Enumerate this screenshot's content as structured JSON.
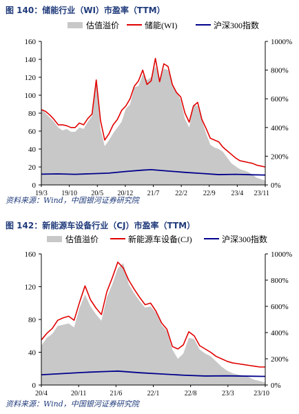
{
  "colors": {
    "title": "#1f3a7a",
    "premium_fill": "#c8c8c8",
    "sector_line": "#e00000",
    "index_line": "#00008b"
  },
  "panels": [
    {
      "title": "图 140：储能行业（WI）市盈率（TTM）",
      "source": "资料来源：Wind，中国银河证券研究院"
    },
    {
      "title": "图 142：新能源车设备行业（CJ）市盈率（TTM）",
      "source": "资料来源：Wind，中国银河证券研究院"
    }
  ],
  "chart_data": [
    {
      "type": "line",
      "x_ticks": [
        "19/3",
        "19/10",
        "20/5",
        "20/12",
        "21/7",
        "22/2",
        "22/9",
        "23/4",
        "23/11"
      ],
      "y_left_ticks": [
        "0",
        "20",
        "40",
        "60",
        "80",
        "100",
        "120",
        "140",
        "160"
      ],
      "y_right_ticks": [
        "0%",
        "200%",
        "400%",
        "600%",
        "800%",
        "1000%"
      ],
      "ylim_left": [
        0,
        160
      ],
      "ylim_right": [
        0,
        10
      ],
      "x_start": "19/3",
      "legend_position": "top",
      "series": [
        {
          "name": "估值溢价",
          "axis": "right",
          "style": "area",
          "values": [
            [
              0,
              5.3
            ],
            [
              1,
              5.0
            ],
            [
              2,
              4.7
            ],
            [
              3,
              4.4
            ],
            [
              4,
              4.0
            ],
            [
              5,
              3.8
            ],
            [
              6,
              3.9
            ],
            [
              7,
              3.7
            ],
            [
              8,
              3.7
            ],
            [
              9,
              4.0
            ],
            [
              10,
              3.9
            ],
            [
              11,
              4.4
            ],
            [
              12,
              4.8
            ],
            [
              13,
              7.2
            ],
            [
              14,
              3.9
            ],
            [
              15,
              2.7
            ],
            [
              16,
              3.1
            ],
            [
              17,
              3.6
            ],
            [
              18,
              4.0
            ],
            [
              19,
              4.4
            ],
            [
              20,
              5.3
            ],
            [
              21,
              5.6
            ],
            [
              22,
              6.8
            ],
            [
              23,
              6.9
            ],
            [
              24,
              7.7
            ],
            [
              25,
              7.3
            ],
            [
              26,
              7.5
            ],
            [
              27,
              8.3
            ],
            [
              28,
              7.4
            ],
            [
              29,
              8.1
            ],
            [
              30,
              8.0
            ],
            [
              31,
              7.0
            ],
            [
              32,
              6.5
            ],
            [
              33,
              5.9
            ],
            [
              34,
              4.6
            ],
            [
              35,
              4.0
            ],
            [
              36,
              5.6
            ],
            [
              37,
              5.5
            ],
            [
              38,
              4.5
            ],
            [
              39,
              3.6
            ],
            [
              40,
              2.8
            ],
            [
              41,
              2.6
            ],
            [
              42,
              2.5
            ],
            [
              43,
              2.3
            ],
            [
              44,
              1.9
            ],
            [
              45,
              1.5
            ],
            [
              46,
              1.3
            ],
            [
              47,
              1.1
            ],
            [
              48,
              1.0
            ],
            [
              49,
              0.9
            ],
            [
              50,
              0.7
            ],
            [
              51,
              0.5
            ],
            [
              52,
              0.4
            ],
            [
              53,
              0.3
            ]
          ]
        },
        {
          "name": "储能(WI)",
          "axis": "left",
          "style": "line",
          "values": [
            [
              0,
              84
            ],
            [
              1,
              82
            ],
            [
              2,
              78
            ],
            [
              3,
              73
            ],
            [
              4,
              67
            ],
            [
              5,
              67
            ],
            [
              6,
              66
            ],
            [
              7,
              64
            ],
            [
              8,
              64
            ],
            [
              9,
              69
            ],
            [
              10,
              67
            ],
            [
              11,
              74
            ],
            [
              12,
              79
            ],
            [
              13,
              117
            ],
            [
              14,
              72
            ],
            [
              15,
              50
            ],
            [
              16,
              57
            ],
            [
              17,
              67
            ],
            [
              18,
              73
            ],
            [
              19,
              83
            ],
            [
              20,
              88
            ],
            [
              21,
              96
            ],
            [
              22,
              110
            ],
            [
              23,
              116
            ],
            [
              24,
              128
            ],
            [
              25,
              112
            ],
            [
              26,
              116
            ],
            [
              27,
              141
            ],
            [
              28,
              115
            ],
            [
              29,
              135
            ],
            [
              30,
              132
            ],
            [
              31,
              112
            ],
            [
              32,
              103
            ],
            [
              33,
              98
            ],
            [
              34,
              80
            ],
            [
              35,
              70
            ],
            [
              36,
              88
            ],
            [
              37,
              92
            ],
            [
              38,
              73
            ],
            [
              39,
              63
            ],
            [
              40,
              52
            ],
            [
              41,
              50
            ],
            [
              42,
              48
            ],
            [
              43,
              42
            ],
            [
              44,
              38
            ],
            [
              45,
              34
            ],
            [
              46,
              30
            ],
            [
              47,
              27
            ],
            [
              48,
              26
            ],
            [
              49,
              25
            ],
            [
              50,
              24
            ],
            [
              51,
              22
            ],
            [
              52,
              21
            ],
            [
              53,
              20
            ]
          ]
        },
        {
          "name": "沪深300指数",
          "axis": "left",
          "style": "line",
          "values": [
            [
              0,
              12.0
            ],
            [
              4,
              12.3
            ],
            [
              8,
              11.8
            ],
            [
              12,
              12.5
            ],
            [
              16,
              13.2
            ],
            [
              20,
              15.0
            ],
            [
              24,
              16.5
            ],
            [
              26,
              17.0
            ],
            [
              30,
              15.5
            ],
            [
              34,
              14.0
            ],
            [
              38,
              12.8
            ],
            [
              42,
              11.5
            ],
            [
              46,
              11.8
            ],
            [
              50,
              11.3
            ],
            [
              53,
              11.0
            ]
          ]
        }
      ]
    },
    {
      "type": "line",
      "x_ticks": [
        "20/4",
        "20/11",
        "21/6",
        "22/1",
        "22/8",
        "23/3",
        "23/10"
      ],
      "y_left_ticks": [
        "0",
        "40",
        "80",
        "120",
        "160"
      ],
      "y_right_ticks": [
        "0%",
        "200%",
        "400%",
        "600%",
        "800%",
        "1000%"
      ],
      "ylim_left": [
        0,
        160
      ],
      "ylim_right": [
        0,
        10
      ],
      "x_start": "20/4",
      "legend_position": "top",
      "series": [
        {
          "name": "估值溢价",
          "axis": "right",
          "style": "area",
          "values": [
            [
              0,
              3.0
            ],
            [
              1,
              3.6
            ],
            [
              2,
              3.9
            ],
            [
              3,
              4.5
            ],
            [
              4,
              4.6
            ],
            [
              5,
              4.7
            ],
            [
              6,
              4.4
            ],
            [
              7,
              5.9
            ],
            [
              8,
              6.9
            ],
            [
              9,
              6.0
            ],
            [
              10,
              5.4
            ],
            [
              11,
              4.9
            ],
            [
              12,
              6.7
            ],
            [
              13,
              7.7
            ],
            [
              14,
              8.9
            ],
            [
              15,
              9.3
            ],
            [
              16,
              7.7
            ],
            [
              17,
              7.0
            ],
            [
              18,
              6.4
            ],
            [
              19,
              5.9
            ],
            [
              20,
              6.0
            ],
            [
              21,
              5.5
            ],
            [
              22,
              4.6
            ],
            [
              23,
              4.1
            ],
            [
              24,
              2.7
            ],
            [
              25,
              2.0
            ],
            [
              26,
              2.4
            ],
            [
              27,
              3.6
            ],
            [
              28,
              3.5
            ],
            [
              29,
              2.7
            ],
            [
              30,
              2.4
            ],
            [
              31,
              2.2
            ],
            [
              32,
              1.8
            ],
            [
              33,
              1.4
            ],
            [
              34,
              1.1
            ],
            [
              35,
              0.9
            ],
            [
              36,
              0.8
            ],
            [
              37,
              0.7
            ],
            [
              38,
              0.6
            ],
            [
              39,
              0.4
            ],
            [
              40,
              0.3
            ],
            [
              41,
              0.2
            ]
          ]
        },
        {
          "name": "新能源车设备(CJ)",
          "axis": "left",
          "style": "line",
          "values": [
            [
              0,
              55
            ],
            [
              1,
              63
            ],
            [
              2,
              69
            ],
            [
              3,
              79
            ],
            [
              4,
              82
            ],
            [
              5,
              84
            ],
            [
              6,
              79
            ],
            [
              7,
              101
            ],
            [
              8,
              121
            ],
            [
              9,
              104
            ],
            [
              10,
              94
            ],
            [
              11,
              86
            ],
            [
              12,
              114
            ],
            [
              13,
              131
            ],
            [
              14,
              150
            ],
            [
              15,
              143
            ],
            [
              16,
              128
            ],
            [
              17,
              117
            ],
            [
              18,
              107
            ],
            [
              19,
              98
            ],
            [
              20,
              100
            ],
            [
              21,
              90
            ],
            [
              22,
              76
            ],
            [
              23,
              68
            ],
            [
              24,
              47
            ],
            [
              25,
              44
            ],
            [
              26,
              49
            ],
            [
              27,
              65
            ],
            [
              28,
              60
            ],
            [
              29,
              48
            ],
            [
              30,
              44
            ],
            [
              31,
              40
            ],
            [
              32,
              35
            ],
            [
              33,
              32
            ],
            [
              34,
              29
            ],
            [
              35,
              27
            ],
            [
              36,
              26
            ],
            [
              37,
              25
            ],
            [
              38,
              24
            ],
            [
              39,
              23
            ],
            [
              40,
              22
            ],
            [
              41,
              22
            ]
          ]
        },
        {
          "name": "沪深300指数",
          "axis": "left",
          "style": "line",
          "values": [
            [
              0,
              12.5
            ],
            [
              4,
              14.0
            ],
            [
              8,
              15.5
            ],
            [
              12,
              16.5
            ],
            [
              14,
              17.0
            ],
            [
              18,
              15.0
            ],
            [
              22,
              13.5
            ],
            [
              26,
              12.0
            ],
            [
              30,
              11.0
            ],
            [
              34,
              11.2
            ],
            [
              38,
              10.8
            ],
            [
              41,
              10.5
            ]
          ]
        }
      ]
    }
  ]
}
